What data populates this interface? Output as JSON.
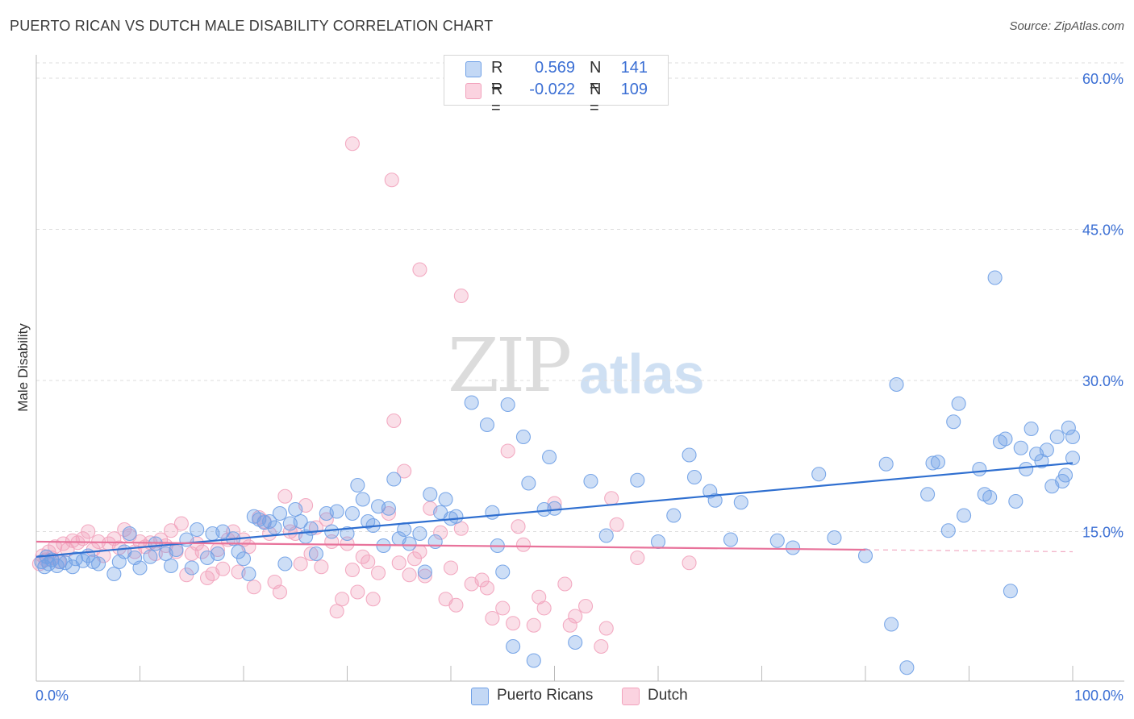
{
  "title": "PUERTO RICAN VS DUTCH MALE DISABILITY CORRELATION CHART",
  "source": "Source: ZipAtlas.com",
  "watermark": {
    "part1": "ZIP",
    "part2": "atlas"
  },
  "legend": {
    "rows": [
      {
        "r_label": "R =",
        "r_value": "0.569",
        "n_label": "N =",
        "n_value": "141",
        "color": "#aac8f0"
      },
      {
        "r_label": "R =",
        "r_value": "-0.022",
        "n_label": "N =",
        "n_value": "109",
        "color": "#f6bcd0"
      }
    ],
    "bottom": [
      {
        "label": "Puerto Ricans",
        "color": "#aac8f0"
      },
      {
        "label": "Dutch",
        "color": "#f6bcd0"
      }
    ]
  },
  "chart_data": {
    "type": "scatter",
    "title": "PUERTO RICAN VS DUTCH MALE DISABILITY CORRELATION CHART",
    "xlabel": "",
    "ylabel": "Male Disability",
    "xlim": [
      0,
      100
    ],
    "ylim": [
      0,
      60
    ],
    "x_tick_labels": [
      "0.0%",
      "100.0%"
    ],
    "y_ticks": [
      15,
      30,
      45,
      60
    ],
    "y_tick_labels": [
      "15.0%",
      "30.0%",
      "45.0%",
      "60.0%"
    ],
    "grid": true,
    "legend_position": "top-center",
    "series": [
      {
        "name": "Puerto Ricans",
        "color": "#6fa0e6",
        "line_color": "#2f6fd0",
        "trend": {
          "x": [
            0,
            100
          ],
          "y": [
            12.5,
            21.8
          ]
        },
        "points": [
          [
            0.5,
            12.0
          ],
          [
            0.8,
            11.5
          ],
          [
            1.0,
            12.5
          ],
          [
            1.2,
            11.8
          ],
          [
            1.5,
            12.2
          ],
          [
            2.0,
            11.6
          ],
          [
            2.3,
            12.0
          ],
          [
            2.8,
            11.9
          ],
          [
            3.5,
            11.5
          ],
          [
            3.8,
            12.3
          ],
          [
            4.5,
            12.1
          ],
          [
            5.0,
            12.6
          ],
          [
            5.5,
            12.0
          ],
          [
            6.0,
            11.8
          ],
          [
            7.5,
            10.8
          ],
          [
            8.0,
            12.0
          ],
          [
            8.5,
            13.0
          ],
          [
            9.0,
            14.8
          ],
          [
            9.5,
            12.4
          ],
          [
            10.0,
            11.4
          ],
          [
            11.0,
            12.5
          ],
          [
            11.5,
            13.8
          ],
          [
            12.5,
            12.8
          ],
          [
            13.0,
            11.6
          ],
          [
            13.5,
            13.2
          ],
          [
            14.5,
            14.2
          ],
          [
            15.0,
            11.4
          ],
          [
            15.5,
            15.2
          ],
          [
            16.5,
            12.4
          ],
          [
            17.0,
            14.8
          ],
          [
            17.5,
            12.8
          ],
          [
            18.0,
            15.0
          ],
          [
            19.0,
            14.3
          ],
          [
            19.5,
            13.0
          ],
          [
            20.0,
            12.3
          ],
          [
            20.5,
            10.8
          ],
          [
            21.0,
            16.5
          ],
          [
            21.5,
            16.2
          ],
          [
            22.0,
            15.9
          ],
          [
            22.5,
            16.0
          ],
          [
            23.0,
            15.4
          ],
          [
            23.5,
            16.8
          ],
          [
            24.0,
            11.8
          ],
          [
            24.5,
            15.8
          ],
          [
            25.0,
            17.2
          ],
          [
            25.5,
            16.0
          ],
          [
            26.0,
            14.5
          ],
          [
            26.5,
            15.3
          ],
          [
            27.0,
            12.8
          ],
          [
            28.0,
            16.8
          ],
          [
            28.5,
            15.0
          ],
          [
            29.0,
            17.0
          ],
          [
            30.0,
            14.8
          ],
          [
            30.5,
            16.8
          ],
          [
            31.0,
            19.6
          ],
          [
            31.5,
            18.2
          ],
          [
            32.0,
            16.0
          ],
          [
            32.5,
            15.6
          ],
          [
            33.0,
            17.5
          ],
          [
            33.5,
            13.6
          ],
          [
            34.0,
            17.3
          ],
          [
            34.5,
            20.2
          ],
          [
            35.0,
            14.3
          ],
          [
            35.5,
            15.2
          ],
          [
            36.0,
            13.8
          ],
          [
            37.0,
            14.8
          ],
          [
            37.5,
            11.0
          ],
          [
            38.0,
            18.7
          ],
          [
            38.5,
            14.0
          ],
          [
            39.0,
            16.9
          ],
          [
            39.5,
            18.2
          ],
          [
            40.0,
            16.3
          ],
          [
            40.5,
            16.5
          ],
          [
            42.0,
            27.8
          ],
          [
            43.5,
            25.6
          ],
          [
            44.0,
            16.9
          ],
          [
            44.5,
            13.6
          ],
          [
            45.0,
            11.0
          ],
          [
            45.5,
            27.6
          ],
          [
            46.0,
            3.6
          ],
          [
            47.0,
            24.4
          ],
          [
            47.5,
            19.8
          ],
          [
            48.0,
            2.2
          ],
          [
            49.0,
            17.2
          ],
          [
            49.5,
            22.4
          ],
          [
            50.0,
            17.3
          ],
          [
            52.0,
            4.0
          ],
          [
            53.5,
            20.0
          ],
          [
            55.0,
            14.6
          ],
          [
            58.0,
            20.1
          ],
          [
            60.0,
            14.0
          ],
          [
            61.5,
            16.6
          ],
          [
            63.0,
            22.6
          ],
          [
            63.5,
            20.4
          ],
          [
            65.0,
            19.0
          ],
          [
            65.5,
            18.1
          ],
          [
            67.0,
            14.2
          ],
          [
            68.0,
            17.9
          ],
          [
            71.5,
            14.1
          ],
          [
            73.0,
            13.4
          ],
          [
            75.5,
            20.7
          ],
          [
            77.0,
            14.4
          ],
          [
            80.0,
            12.6
          ],
          [
            82.0,
            21.7
          ],
          [
            82.5,
            5.8
          ],
          [
            83.0,
            29.6
          ],
          [
            84.0,
            1.5
          ],
          [
            86.0,
            18.7
          ],
          [
            86.5,
            21.8
          ],
          [
            87.0,
            21.9
          ],
          [
            88.0,
            15.1
          ],
          [
            88.5,
            25.9
          ],
          [
            89.0,
            27.7
          ],
          [
            89.5,
            16.6
          ],
          [
            91.0,
            21.2
          ],
          [
            91.5,
            18.7
          ],
          [
            92.0,
            18.4
          ],
          [
            92.5,
            40.2
          ],
          [
            93.0,
            23.9
          ],
          [
            93.5,
            24.2
          ],
          [
            94.0,
            9.1
          ],
          [
            94.5,
            18.0
          ],
          [
            95.0,
            23.3
          ],
          [
            95.5,
            21.2
          ],
          [
            96.0,
            25.2
          ],
          [
            96.5,
            22.7
          ],
          [
            97.0,
            22.0
          ],
          [
            97.5,
            23.1
          ],
          [
            98.0,
            19.5
          ],
          [
            98.5,
            24.4
          ],
          [
            99.0,
            20.0
          ],
          [
            99.3,
            20.6
          ],
          [
            99.6,
            25.3
          ],
          [
            100.0,
            22.3
          ],
          [
            100.0,
            24.4
          ]
        ]
      },
      {
        "name": "Dutch",
        "color": "#f2a3bd",
        "line_color": "#e8739b",
        "trend": {
          "x": [
            0,
            80
          ],
          "y": [
            14.0,
            13.2
          ]
        },
        "trend_dashed": {
          "x": [
            80,
            100
          ],
          "y": [
            13.2,
            13.0
          ]
        },
        "points": [
          [
            0.3,
            11.8
          ],
          [
            0.6,
            12.6
          ],
          [
            0.9,
            12.2
          ],
          [
            1.2,
            13.0
          ],
          [
            1.5,
            12.4
          ],
          [
            1.8,
            13.5
          ],
          [
            2.2,
            12.0
          ],
          [
            2.6,
            13.8
          ],
          [
            3.0,
            13.2
          ],
          [
            3.5,
            14.1
          ],
          [
            4.0,
            13.9
          ],
          [
            4.5,
            14.3
          ],
          [
            5.0,
            15.0
          ],
          [
            5.5,
            13.2
          ],
          [
            6.0,
            14.0
          ],
          [
            6.5,
            12.6
          ],
          [
            7.0,
            13.8
          ],
          [
            7.5,
            14.3
          ],
          [
            8.0,
            13.4
          ],
          [
            8.5,
            15.2
          ],
          [
            9.0,
            14.6
          ],
          [
            9.5,
            13.0
          ],
          [
            10.0,
            14.0
          ],
          [
            10.5,
            13.5
          ],
          [
            11.0,
            13.9
          ],
          [
            11.5,
            12.8
          ],
          [
            12.0,
            14.2
          ],
          [
            12.5,
            13.6
          ],
          [
            13.0,
            15.1
          ],
          [
            13.5,
            13.0
          ],
          [
            14.0,
            15.8
          ],
          [
            14.5,
            10.7
          ],
          [
            15.0,
            12.8
          ],
          [
            15.5,
            13.8
          ],
          [
            16.0,
            13.0
          ],
          [
            16.5,
            10.4
          ],
          [
            17.0,
            10.8
          ],
          [
            17.5,
            13.2
          ],
          [
            18.0,
            11.3
          ],
          [
            18.5,
            14.2
          ],
          [
            19.0,
            15.0
          ],
          [
            19.5,
            11.0
          ],
          [
            20.0,
            14.2
          ],
          [
            20.5,
            13.5
          ],
          [
            21.0,
            9.5
          ],
          [
            21.5,
            16.4
          ],
          [
            22.0,
            16.0
          ],
          [
            22.5,
            14.8
          ],
          [
            23.0,
            10.0
          ],
          [
            23.5,
            9.0
          ],
          [
            24.0,
            18.5
          ],
          [
            24.5,
            15.0
          ],
          [
            25.0,
            14.8
          ],
          [
            25.5,
            11.8
          ],
          [
            26.0,
            17.6
          ],
          [
            26.5,
            12.8
          ],
          [
            27.0,
            15.4
          ],
          [
            27.5,
            11.5
          ],
          [
            28.0,
            16.2
          ],
          [
            28.5,
            14.0
          ],
          [
            29.0,
            7.1
          ],
          [
            29.5,
            8.3
          ],
          [
            30.0,
            13.8
          ],
          [
            30.5,
            11.2
          ],
          [
            31.0,
            9.0
          ],
          [
            31.5,
            12.5
          ],
          [
            32.0,
            12.0
          ],
          [
            32.5,
            8.3
          ],
          [
            33.0,
            10.9
          ],
          [
            34.0,
            16.8
          ],
          [
            34.5,
            26.0
          ],
          [
            35.0,
            11.9
          ],
          [
            35.5,
            21.0
          ],
          [
            36.0,
            10.7
          ],
          [
            36.5,
            12.3
          ],
          [
            37.0,
            13.0
          ],
          [
            37.5,
            10.6
          ],
          [
            38.0,
            17.3
          ],
          [
            39.0,
            14.9
          ],
          [
            39.5,
            8.3
          ],
          [
            40.0,
            11.4
          ],
          [
            40.5,
            7.7
          ],
          [
            41.0,
            15.3
          ],
          [
            42.0,
            9.8
          ],
          [
            43.0,
            10.2
          ],
          [
            43.5,
            9.4
          ],
          [
            44.0,
            6.4
          ],
          [
            45.0,
            7.4
          ],
          [
            45.5,
            23.0
          ],
          [
            46.0,
            5.9
          ],
          [
            46.5,
            15.5
          ],
          [
            47.0,
            13.7
          ],
          [
            48.0,
            5.7
          ],
          [
            48.5,
            8.5
          ],
          [
            49.0,
            7.4
          ],
          [
            50.0,
            17.8
          ],
          [
            51.0,
            9.8
          ],
          [
            51.5,
            5.7
          ],
          [
            52.0,
            6.6
          ],
          [
            53.0,
            7.6
          ],
          [
            54.5,
            3.6
          ],
          [
            55.0,
            5.4
          ],
          [
            55.5,
            18.3
          ],
          [
            56.0,
            15.7
          ],
          [
            58.0,
            12.4
          ],
          [
            63.0,
            11.9
          ],
          [
            37.0,
            41.0
          ],
          [
            41.0,
            38.4
          ],
          [
            30.5,
            53.5
          ],
          [
            34.3,
            49.9
          ]
        ]
      }
    ]
  }
}
